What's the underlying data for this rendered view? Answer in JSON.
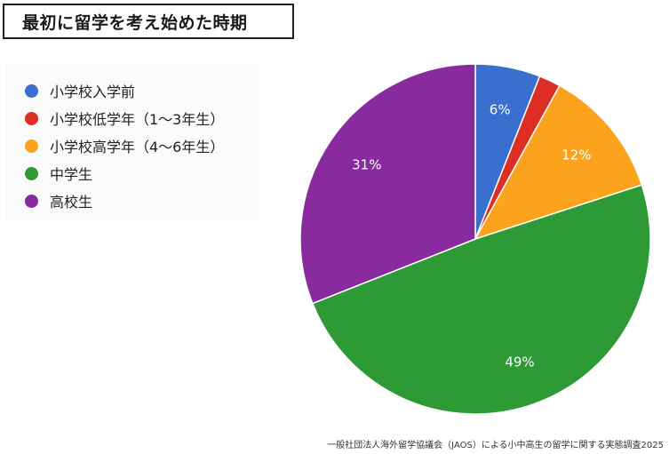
{
  "title": "最初に留学を考え始めた時期",
  "source": "一般社団法人海外留学協議会（JAOS）による小中高生の留学に関する実態調査2025",
  "chart_data": {
    "type": "pie",
    "title": "最初に留学を考え始めた時期",
    "start_angle_deg": 0,
    "direction": "clockwise",
    "legend_position": "top-left",
    "slices": [
      {
        "label": "小学校入学前",
        "value": 6,
        "display": "6%",
        "color": "#3A6FD0",
        "show_label": true
      },
      {
        "label": "小学校低学年（1〜3年生）",
        "value": 2,
        "display": "2%",
        "color": "#DD2E24",
        "show_label": false
      },
      {
        "label": "小学校高学年（4〜6年生）",
        "value": 12,
        "display": "12%",
        "color": "#FBA31C",
        "show_label": true
      },
      {
        "label": "中学生",
        "value": 49,
        "display": "49%",
        "color": "#2E9A36",
        "show_label": true
      },
      {
        "label": "高校生",
        "value": 31,
        "display": "31%",
        "color": "#892A9E",
        "show_label": true
      }
    ]
  }
}
